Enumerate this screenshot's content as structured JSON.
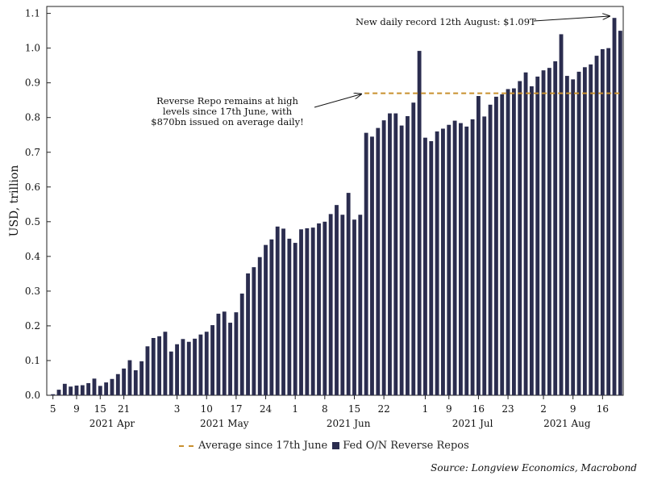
{
  "chart_data": {
    "type": "bar",
    "ylabel": "USD, trillion",
    "ylim": [
      0,
      1.12
    ],
    "yticks": [
      "0.0",
      "0.1",
      "0.2",
      "0.3",
      "0.4",
      "0.5",
      "0.6",
      "0.7",
      "0.8",
      "0.9",
      "1.0",
      "1.1"
    ],
    "ytick_values": [
      0,
      0.1,
      0.2,
      0.3,
      0.4,
      0.5,
      0.6,
      0.7,
      0.8,
      0.9,
      1.0,
      1.1
    ],
    "day_labels": [
      {
        "index": 0,
        "label": "5"
      },
      {
        "index": 4,
        "label": "9"
      },
      {
        "index": 8,
        "label": "15"
      },
      {
        "index": 12,
        "label": "21"
      },
      {
        "index": 21,
        "label": "3"
      },
      {
        "index": 26,
        "label": "10"
      },
      {
        "index": 31,
        "label": "17"
      },
      {
        "index": 36,
        "label": "24"
      },
      {
        "index": 41,
        "label": "1"
      },
      {
        "index": 46,
        "label": "8"
      },
      {
        "index": 51,
        "label": "15"
      },
      {
        "index": 56,
        "label": "22"
      },
      {
        "index": 63,
        "label": "1"
      },
      {
        "index": 67,
        "label": "9"
      },
      {
        "index": 72,
        "label": "16"
      },
      {
        "index": 77,
        "label": "23"
      },
      {
        "index": 83,
        "label": "2"
      },
      {
        "index": 88,
        "label": "9"
      },
      {
        "index": 93,
        "label": "16"
      }
    ],
    "month_labels": [
      {
        "index": 10,
        "label": "2021 Apr"
      },
      {
        "index": 29,
        "label": "2021 May"
      },
      {
        "index": 50,
        "label": "2021 Jun"
      },
      {
        "index": 71,
        "label": "2021 Jul"
      },
      {
        "index": 87,
        "label": "2021 Aug"
      }
    ],
    "series": [
      {
        "name": "Fed O/N Reverse Repos",
        "color": "#2b2d4f",
        "values": [
          0.003,
          0.016,
          0.033,
          0.025,
          0.028,
          0.029,
          0.035,
          0.048,
          0.027,
          0.037,
          0.047,
          0.061,
          0.077,
          0.101,
          0.072,
          0.098,
          0.141,
          0.165,
          0.17,
          0.183,
          0.126,
          0.147,
          0.162,
          0.154,
          0.163,
          0.175,
          0.183,
          0.202,
          0.235,
          0.241,
          0.209,
          0.239,
          0.293,
          0.351,
          0.369,
          0.398,
          0.433,
          0.449,
          0.486,
          0.48,
          0.451,
          0.439,
          0.478,
          0.481,
          0.483,
          0.495,
          0.5,
          0.522,
          0.548,
          0.52,
          0.583,
          0.506,
          0.52,
          0.756,
          0.745,
          0.77,
          0.792,
          0.812,
          0.812,
          0.777,
          0.804,
          0.843,
          0.992,
          0.742,
          0.732,
          0.76,
          0.768,
          0.779,
          0.791,
          0.784,
          0.774,
          0.795,
          0.862,
          0.803,
          0.837,
          0.86,
          0.867,
          0.882,
          0.884,
          0.905,
          0.93,
          0.89,
          0.918,
          0.936,
          0.943,
          0.962,
          1.04,
          0.92,
          0.91,
          0.932,
          0.945,
          0.953,
          0.978,
          0.997,
          1.0,
          1.087,
          1.05
        ]
      },
      {
        "name": "Average since 17th June",
        "color": "#c8902e",
        "value": 0.87,
        "start_index": 53,
        "end_index": 96
      }
    ],
    "annotations": [
      {
        "name": "reverse-repo-note",
        "lines": [
          "Reverse Repo remains at high",
          "levels since 17th June, with",
          "$870bn issued on average daily!"
        ],
        "arrow_to_index": 53,
        "arrow_to_value": 0.87
      },
      {
        "name": "record-note",
        "lines": [
          "New daily record 12th August: $1.09T"
        ],
        "arrow_to_index": 95,
        "arrow_to_value": 1.087
      }
    ]
  },
  "legend": {
    "average_label": "Average since 17th June",
    "repos_label": "Fed O/N Reverse Repos"
  },
  "source": "Source: Longview Economics, Macrobond"
}
